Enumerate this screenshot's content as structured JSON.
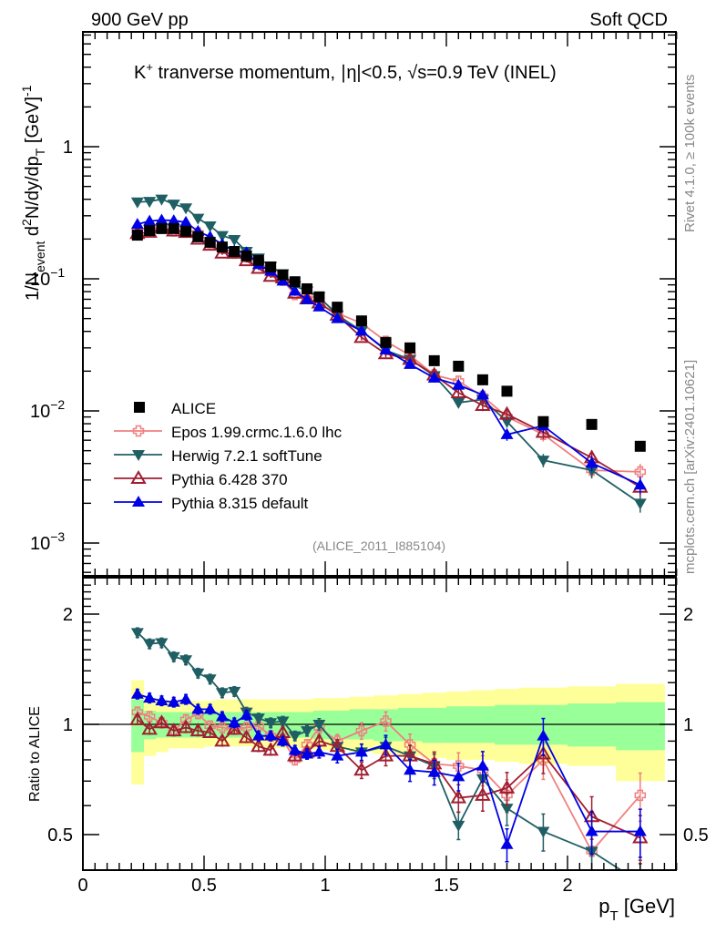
{
  "header": {
    "left_label": "900 GeV pp",
    "right_label": "Soft QCD"
  },
  "side_labels": {
    "rivet": "Rivet 4.1.0, ≥ 100k events",
    "mcplots": "mcplots.cern.ch [arXiv:2401.10621]"
  },
  "chart_data": [
    {
      "type": "line",
      "panel": "main",
      "title": "K⁺ tranverse momentum, |η|<0.5, √s=0.9 TeV (INEL)",
      "title_parts": {
        "k": "K",
        "sup": "+",
        "rest": " tranverse momentum, ",
        "eta": "η|<0.5, ",
        "sqrt": "√",
        "s": "s=0.9 TeV (INEL)"
      },
      "ylabel": "1/N_event d²N/dy/dp_T [GeV]⁻¹",
      "ylabel_parts": {
        "a": "1/N",
        "a_sub": "event",
        "b": " d",
        "b_sup": "2",
        "c": "N/dy/dp",
        "c_sub": "T",
        "d": "  [GeV]",
        "d_sup": "-1"
      },
      "xlabel": "p_T [GeV]",
      "yscale": "log",
      "ylim": [
        0.00055,
        6.5
      ],
      "xlim": [
        0,
        2.45
      ],
      "yticks": [
        {
          "value": 1,
          "label": "1",
          "exp": ""
        },
        {
          "value": 0.1,
          "label": "10",
          "exp": "−1"
        },
        {
          "value": 0.01,
          "label": "10",
          "exp": "−2"
        },
        {
          "value": 0.001,
          "label": "10",
          "exp": "−3"
        }
      ],
      "watermark": "(ALICE_2011_I885104)",
      "legend_position": "lower-left",
      "x": [
        0.225,
        0.275,
        0.325,
        0.375,
        0.425,
        0.475,
        0.525,
        0.575,
        0.625,
        0.675,
        0.725,
        0.775,
        0.825,
        0.875,
        0.925,
        0.975,
        1.05,
        1.15,
        1.25,
        1.35,
        1.45,
        1.55,
        1.65,
        1.75,
        1.9,
        2.1,
        2.3
      ],
      "x_bin_edges": [
        0.2,
        0.25,
        0.3,
        0.35,
        0.4,
        0.45,
        0.5,
        0.55,
        0.6,
        0.65,
        0.7,
        0.75,
        0.8,
        0.85,
        0.9,
        0.95,
        1.0,
        1.1,
        1.2,
        1.3,
        1.4,
        1.5,
        1.6,
        1.7,
        1.8,
        2.0,
        2.2,
        2.4
      ],
      "series": [
        {
          "name": "ALICE",
          "color": "#000000",
          "marker": "square",
          "values": [
            0.214,
            0.232,
            0.24,
            0.24,
            0.229,
            0.208,
            0.189,
            0.174,
            0.161,
            0.149,
            0.138,
            0.123,
            0.107,
            0.095,
            0.084,
            0.073,
            0.061,
            0.048,
            0.033,
            0.03,
            0.024,
            0.0218,
            0.0172,
            0.0141,
            0.0083,
            0.0079,
            0.0054
          ]
        },
        {
          "name": "Epos 1.99.crmc.1.6.0 lhc",
          "color": "#f08080",
          "marker": "open-cross",
          "ratio": [
            1.08,
            1.05,
            1.01,
            0.96,
            1.03,
            1.07,
            0.99,
            0.98,
            0.97,
            0.98,
            0.99,
            0.93,
            0.91,
            0.8,
            0.88,
            0.98,
            0.9,
            0.96,
            1.02,
            0.88,
            0.78,
            0.77,
            0.75,
            0.64,
            0.8,
            0.45,
            0.64
          ]
        },
        {
          "name": "Herwig 7.2.1 softTune",
          "color": "#1f5f64",
          "marker": "down-triangle",
          "ratio": [
            1.78,
            1.66,
            1.67,
            1.53,
            1.5,
            1.38,
            1.33,
            1.22,
            1.23,
            1.08,
            1.04,
            1.01,
            1.02,
            0.93,
            0.96,
            1.0,
            0.87,
            0.84,
            0.87,
            0.82,
            0.77,
            0.53,
            0.71,
            0.59,
            0.51,
            0.45,
            0.37
          ]
        },
        {
          "name": "Pythia 6.428 370",
          "color": "#a01e32",
          "marker": "open-triangle",
          "ratio": [
            1.03,
            0.97,
            1.01,
            0.96,
            0.98,
            0.96,
            0.95,
            0.9,
            0.97,
            0.92,
            0.87,
            0.85,
            0.95,
            0.82,
            0.84,
            0.9,
            0.87,
            0.75,
            0.82,
            0.82,
            0.78,
            0.63,
            0.64,
            0.67,
            0.83,
            0.56,
            0.49
          ]
        },
        {
          "name": "Pythia 8.315 default",
          "color": "#0000e6",
          "marker": "up-triangle",
          "ratio": [
            1.21,
            1.18,
            1.16,
            1.15,
            1.17,
            1.1,
            1.1,
            1.05,
            1.01,
            1.06,
            0.93,
            0.93,
            0.9,
            0.85,
            0.83,
            0.84,
            0.82,
            0.84,
            0.88,
            0.75,
            0.74,
            0.72,
            0.77,
            0.47,
            0.93,
            0.51,
            0.51
          ]
        }
      ]
    },
    {
      "type": "line",
      "panel": "ratio",
      "ylabel": "Ratio to ALICE",
      "yscale": "log",
      "ylim": [
        0.39,
        2.5
      ],
      "yticks": [
        {
          "value": 2,
          "label": "2"
        },
        {
          "value": 1,
          "label": "1"
        },
        {
          "value": 0.5,
          "label": "0.5"
        }
      ],
      "xticks": [
        {
          "value": 0,
          "label": "0"
        },
        {
          "value": 0.5,
          "label": "0.5"
        },
        {
          "value": 1,
          "label": "1"
        },
        {
          "value": 1.5,
          "label": "1.5"
        },
        {
          "value": 2,
          "label": "2"
        }
      ],
      "xlabel_parts": {
        "p": "p",
        "sub": "T",
        "unit": " [GeV]"
      },
      "bands": {
        "yellow_color": "#ffff99",
        "green_color": "#99ff99",
        "yellow_hi": [
          1.32,
          1.18,
          1.17,
          1.16,
          1.16,
          1.16,
          1.16,
          1.17,
          1.17,
          1.17,
          1.17,
          1.17,
          1.17,
          1.17,
          1.17,
          1.18,
          1.18,
          1.19,
          1.2,
          1.21,
          1.22,
          1.23,
          1.24,
          1.25,
          1.26,
          1.27,
          1.29
        ],
        "yellow_lo": [
          0.685,
          0.82,
          0.84,
          0.86,
          0.86,
          0.86,
          0.87,
          0.87,
          0.87,
          0.87,
          0.86,
          0.86,
          0.86,
          0.86,
          0.86,
          0.85,
          0.85,
          0.84,
          0.83,
          0.82,
          0.81,
          0.8,
          0.8,
          0.79,
          0.78,
          0.77,
          0.7
        ],
        "green_hi": [
          1.17,
          1.09,
          1.08,
          1.08,
          1.08,
          1.08,
          1.08,
          1.08,
          1.08,
          1.08,
          1.08,
          1.08,
          1.08,
          1.08,
          1.08,
          1.09,
          1.09,
          1.1,
          1.1,
          1.11,
          1.11,
          1.12,
          1.12,
          1.13,
          1.13,
          1.14,
          1.15
        ],
        "green_lo": [
          0.84,
          0.91,
          0.92,
          0.92,
          0.92,
          0.92,
          0.92,
          0.92,
          0.92,
          0.92,
          0.92,
          0.92,
          0.92,
          0.92,
          0.92,
          0.91,
          0.91,
          0.91,
          0.9,
          0.9,
          0.89,
          0.89,
          0.89,
          0.88,
          0.88,
          0.87,
          0.85
        ]
      }
    }
  ]
}
